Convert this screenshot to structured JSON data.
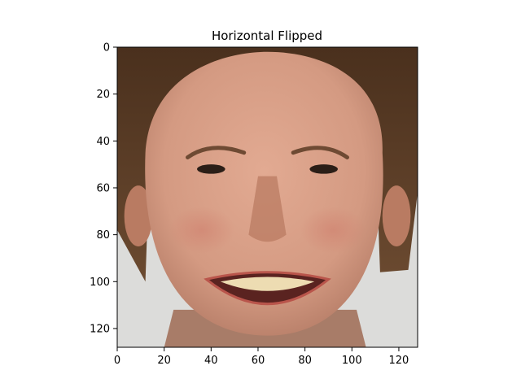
{
  "chart_data": {
    "type": "image",
    "title": "Horizontal Flipped",
    "xlabel": "",
    "ylabel": "",
    "xlim": [
      0,
      128
    ],
    "ylim": [
      128,
      0
    ],
    "y_axis_inverted": true,
    "grid": false,
    "legend": "none",
    "xticks": [
      0,
      20,
      40,
      60,
      80,
      100,
      120
    ],
    "yticks": [
      0,
      20,
      40,
      60,
      80,
      100,
      120
    ],
    "image": {
      "content": "smiling man's face, front view, horizontally flipped",
      "pixel_size": [
        128,
        128
      ]
    },
    "colors": {
      "background": "#dcdcda",
      "hair": "#5a3d26",
      "skin": "#d9a088",
      "skin_shadow": "#b97b62",
      "cheek": "#cf8675",
      "neck": "#a87c68",
      "brow": "#6e4a33",
      "eye": "#2b1e17",
      "lip": "#b9554b",
      "mouth": "#5a2320",
      "teeth": "#eddcb2",
      "axis": "#000000"
    }
  }
}
